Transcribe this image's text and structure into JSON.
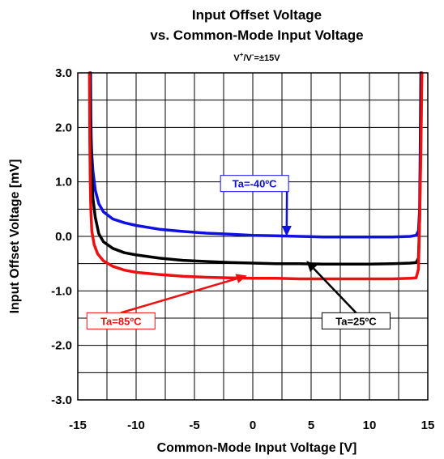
{
  "chart_data": {
    "type": "line",
    "title": "Input Offset Voltage",
    "subtitle": "vs. Common-Mode Input Voltage",
    "condition": {
      "prefix": "V",
      "sup1": "+",
      "middle": "/V",
      "sup2": "-",
      "suffix": "=±15V"
    },
    "xlabel": "Common-Mode Input Voltage [V]",
    "ylabel": "Input Offset Voltage [mV]",
    "xlim": [
      -15,
      15
    ],
    "ylim": [
      -3.0,
      3.0
    ],
    "x_ticks": [
      "-15",
      "-10",
      "-5",
      "0",
      "5",
      "10",
      "15"
    ],
    "y_ticks": [
      "3.0",
      "2.0",
      "1.0",
      "0.0",
      "-1.0",
      "-2.0",
      "-3.0"
    ],
    "grid": true,
    "series": [
      {
        "name": "Ta=-40ºC",
        "color": "#1010e0",
        "points": [
          [
            -13.9,
            3.0
          ],
          [
            -13.88,
            2.2
          ],
          [
            -13.85,
            1.8
          ],
          [
            -13.8,
            1.5
          ],
          [
            -13.7,
            1.2
          ],
          [
            -13.5,
            0.85
          ],
          [
            -13.2,
            0.6
          ],
          [
            -12.8,
            0.45
          ],
          [
            -12.0,
            0.32
          ],
          [
            -11.0,
            0.25
          ],
          [
            -10.0,
            0.2
          ],
          [
            -8.0,
            0.13
          ],
          [
            -6.0,
            0.09
          ],
          [
            -4.0,
            0.06
          ],
          [
            -2.0,
            0.04
          ],
          [
            0.0,
            0.02
          ],
          [
            2.0,
            0.01
          ],
          [
            4.0,
            0.0
          ],
          [
            6.0,
            -0.01
          ],
          [
            8.0,
            -0.01
          ],
          [
            10.0,
            -0.01
          ],
          [
            12.0,
            -0.01
          ],
          [
            13.5,
            0.0
          ],
          [
            14.0,
            0.02
          ],
          [
            14.2,
            0.1
          ],
          [
            14.3,
            0.5
          ],
          [
            14.35,
            1.5
          ],
          [
            14.4,
            3.0
          ]
        ]
      },
      {
        "name": "Ta=25ºC",
        "color": "#000000",
        "points": [
          [
            -13.95,
            3.0
          ],
          [
            -13.9,
            2.0
          ],
          [
            -13.85,
            1.5
          ],
          [
            -13.8,
            1.1
          ],
          [
            -13.7,
            0.7
          ],
          [
            -13.5,
            0.35
          ],
          [
            -13.2,
            0.05
          ],
          [
            -12.8,
            -0.1
          ],
          [
            -12.0,
            -0.22
          ],
          [
            -11.0,
            -0.3
          ],
          [
            -10.0,
            -0.34
          ],
          [
            -8.0,
            -0.4
          ],
          [
            -6.0,
            -0.44
          ],
          [
            -4.0,
            -0.46
          ],
          [
            -2.0,
            -0.48
          ],
          [
            0.0,
            -0.49
          ],
          [
            2.0,
            -0.5
          ],
          [
            4.0,
            -0.5
          ],
          [
            6.0,
            -0.51
          ],
          [
            8.0,
            -0.51
          ],
          [
            10.0,
            -0.51
          ],
          [
            12.0,
            -0.5
          ],
          [
            13.5,
            -0.49
          ],
          [
            14.0,
            -0.48
          ],
          [
            14.2,
            -0.4
          ],
          [
            14.3,
            0.3
          ],
          [
            14.38,
            1.5
          ],
          [
            14.45,
            3.0
          ]
        ]
      },
      {
        "name": "Ta=85ºC",
        "color": "#ee1010",
        "points": [
          [
            -14.0,
            3.0
          ],
          [
            -13.97,
            1.8
          ],
          [
            -13.93,
            1.0
          ],
          [
            -13.88,
            0.5
          ],
          [
            -13.8,
            0.1
          ],
          [
            -13.6,
            -0.15
          ],
          [
            -13.3,
            -0.32
          ],
          [
            -12.8,
            -0.45
          ],
          [
            -12.0,
            -0.55
          ],
          [
            -11.0,
            -0.62
          ],
          [
            -10.0,
            -0.66
          ],
          [
            -8.0,
            -0.7
          ],
          [
            -6.0,
            -0.73
          ],
          [
            -4.0,
            -0.75
          ],
          [
            -2.0,
            -0.76
          ],
          [
            0.0,
            -0.77
          ],
          [
            2.0,
            -0.77
          ],
          [
            4.0,
            -0.78
          ],
          [
            6.0,
            -0.78
          ],
          [
            8.0,
            -0.78
          ],
          [
            10.0,
            -0.78
          ],
          [
            12.0,
            -0.78
          ],
          [
            13.5,
            -0.77
          ],
          [
            14.0,
            -0.76
          ],
          [
            14.2,
            -0.6
          ],
          [
            14.3,
            0.3
          ],
          [
            14.4,
            1.5
          ],
          [
            14.5,
            3.0
          ]
        ]
      }
    ],
    "annotations": [
      {
        "text": "Ta=-40ºC",
        "color": "#1010e0",
        "box_color": "#1010e0",
        "label_at": [
          0.15,
          0.97
        ],
        "arrow_to": [
          2.9,
          0.0
        ]
      },
      {
        "text": "Ta=25ºC",
        "color": "#000000",
        "box_color": "#000000",
        "label_at": [
          8.85,
          -1.55
        ],
        "arrow_to": [
          4.6,
          -0.45
        ]
      },
      {
        "text": "Ta=85ºC",
        "color": "#ee1010",
        "box_color": "#ee1010",
        "label_at": [
          -11.3,
          -1.55
        ],
        "arrow_to": [
          -0.5,
          -0.72
        ]
      }
    ]
  }
}
